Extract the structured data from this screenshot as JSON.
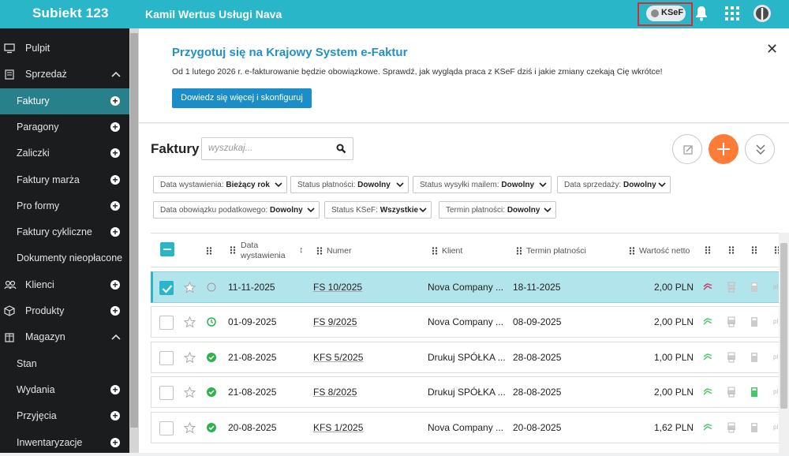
{
  "app": {
    "logo": "Subiekt 123",
    "company": "Kamil Wertus Usługi Nava"
  },
  "header_icons": {
    "ksef_label": "KSeF",
    "toggle_state": "off",
    "icons": [
      "bell-icon",
      "apps-grid-icon",
      "user-avatar"
    ]
  },
  "sidebar": {
    "items": [
      {
        "label": "Pulpit",
        "icon": "desktop-icon",
        "top": true
      },
      {
        "label": "Sprzedaż",
        "icon": "cart-icon",
        "top": true,
        "expanded": true
      },
      {
        "label": "Faktury",
        "active": true,
        "plus": true
      },
      {
        "label": "Paragony",
        "plus": true
      },
      {
        "label": "Zaliczki",
        "plus": true
      },
      {
        "label": "Faktury marża",
        "plus": true
      },
      {
        "label": "Pro formy",
        "plus": true
      },
      {
        "label": "Faktury cykliczne",
        "plus": true
      },
      {
        "label": "Dokumenty nieopłacone"
      },
      {
        "label": "Klienci",
        "icon": "people-icon",
        "top": true,
        "plus": true
      },
      {
        "label": "Produkty",
        "icon": "box-icon",
        "top": true,
        "plus": true
      },
      {
        "label": "Magazyn",
        "icon": "warehouse-icon",
        "top": true,
        "expanded": true
      },
      {
        "label": "Stan"
      },
      {
        "label": "Wydania",
        "plus": true
      },
      {
        "label": "Przyjęcia",
        "plus": true
      },
      {
        "label": "Inwentaryzacje",
        "plus": true
      }
    ]
  },
  "banner": {
    "title": "Przygotuj się na Krajowy System e-Faktur",
    "text": "Od 1 lutego 2026 r. e-fakturowanie będzie obowiązkowe. Sprawdź, jak wygląda praca z KSeF dziś i jakie zmiany czekają Cię wkrótce!",
    "button": "Dowiedz się więcej i skonfiguruj",
    "close": "✕"
  },
  "page": {
    "title": "Faktury",
    "search_placeholder": "wyszukaj..."
  },
  "filters": [
    {
      "label": "Data wystawienia:",
      "value": "Bieżący rok"
    },
    {
      "label": "Status płatności:",
      "value": "Dowolny"
    },
    {
      "label": "Status wysyłki mailem:",
      "value": "Dowolny"
    },
    {
      "label": "Data sprzedaży:",
      "value": "Dowolny"
    },
    {
      "label": "Data obowiązku podatkowego:",
      "value": "Dowolny"
    },
    {
      "label": "Status KSeF:",
      "value": "Wszystkie"
    },
    {
      "label": "Termin płatności:",
      "value": "Dowolny"
    }
  ],
  "table": {
    "headers": {
      "date_line1": "Data",
      "date_line2": "wystawienia",
      "number": "Numer",
      "client": "Klient",
      "due": "Termin płatności",
      "net": "Wartość netto"
    },
    "rows": [
      {
        "date": "11-11-2025",
        "number": "FS 10/2025",
        "client": "Nova Company ...",
        "due": "18-11-2025",
        "net": "2,00 PLN",
        "selected": true,
        "status": "empty"
      },
      {
        "date": "01-09-2025",
        "number": "FS 9/2025",
        "client": "Nova Company ...",
        "due": "08-09-2025",
        "net": "2,00 PLN",
        "selected": false,
        "status": "clock"
      },
      {
        "date": "21-08-2025",
        "number": "KFS 5/2025",
        "client": "Drukuj SPÓŁKA ...",
        "due": "28-08-2025",
        "net": "1,00 PLN",
        "selected": false,
        "status": "paid"
      },
      {
        "date": "21-08-2025",
        "number": "FS 8/2025",
        "client": "Drukuj SPÓŁKA ...",
        "due": "28-08-2025",
        "net": "2,00 PLN",
        "selected": false,
        "status": "paid"
      },
      {
        "date": "20-08-2025",
        "number": "KFS 1/2025",
        "client": "Nova Company ...",
        "due": "20-08-2025",
        "net": "1,62 PLN",
        "selected": false,
        "status": "paid"
      }
    ]
  },
  "colors": {
    "brand": "#29b6c9",
    "accent": "#ff7b38",
    "sidebar": "#1a1c1e",
    "active": "#27808a",
    "link": "#2291c6",
    "paid": "#2cb34a"
  }
}
